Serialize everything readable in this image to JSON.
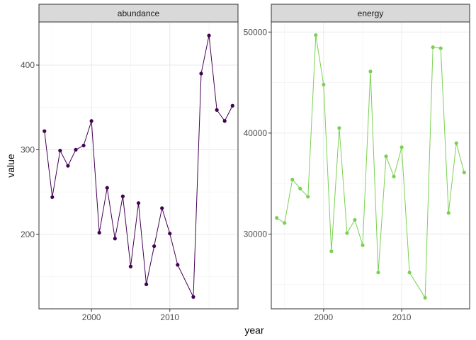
{
  "chart_data": {
    "type": "line",
    "xlabel": "year",
    "ylabel": "value",
    "grid": true,
    "legend": "none",
    "panels": [
      {
        "strip": "abundance",
        "color": "#440154",
        "xlim": [
          1993.3,
          2018.7
        ],
        "ylim": [
          112,
          451
        ],
        "xticks": [
          2000,
          2010
        ],
        "xtick_labels": [
          "2000",
          "2010"
        ],
        "yticks": [
          200,
          300,
          400
        ],
        "ytick_labels": [
          "200",
          "300",
          "400"
        ],
        "x": [
          1994,
          1995,
          1996,
          1997,
          1998,
          1999,
          2000,
          2001,
          2002,
          2003,
          2004,
          2005,
          2006,
          2007,
          2008,
          2009,
          2010,
          2011,
          2013,
          2014,
          2015,
          2016,
          2017,
          2018
        ],
        "y": [
          322,
          244,
          299,
          281,
          300,
          305,
          334,
          202,
          255,
          195,
          245,
          162,
          237,
          141,
          186,
          231,
          201,
          164,
          126,
          390,
          435,
          347,
          334,
          352
        ]
      },
      {
        "strip": "energy",
        "color": "#7AD151",
        "xlim": [
          1993.3,
          2018.7
        ],
        "ylim": [
          22600,
          51000
        ],
        "xticks": [
          2000,
          2010
        ],
        "xtick_labels": [
          "2000",
          "2010"
        ],
        "yticks": [
          30000,
          40000,
          50000
        ],
        "ytick_labels": [
          "30000",
          "40000",
          "50000"
        ],
        "x": [
          1994,
          1995,
          1996,
          1997,
          1998,
          1999,
          2000,
          2001,
          2002,
          2003,
          2004,
          2005,
          2006,
          2007,
          2008,
          2009,
          2010,
          2011,
          2013,
          2014,
          2015,
          2016,
          2017,
          2018
        ],
        "y": [
          31600,
          31100,
          35400,
          34500,
          33700,
          49700,
          44800,
          28300,
          40500,
          30100,
          31400,
          28900,
          46100,
          26200,
          37700,
          35700,
          38600,
          26200,
          23700,
          48500,
          48400,
          32100,
          39000,
          36100
        ]
      }
    ]
  }
}
